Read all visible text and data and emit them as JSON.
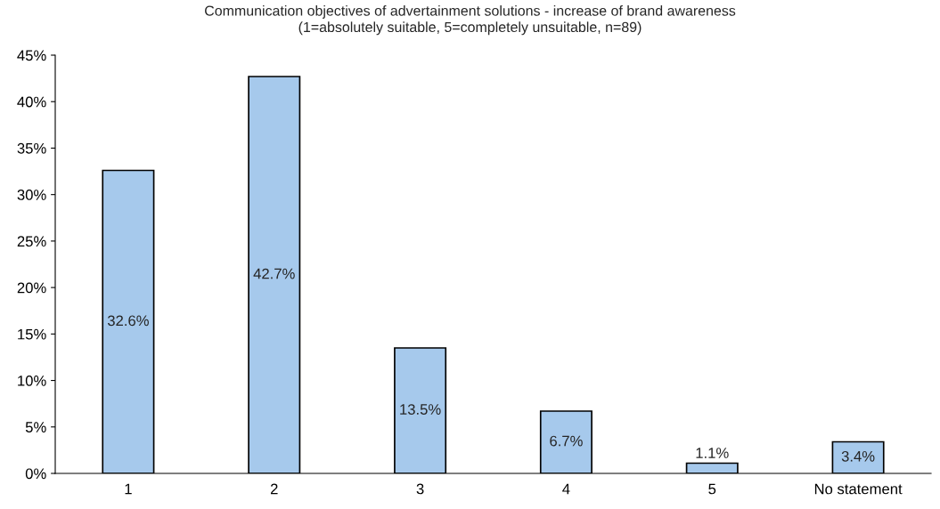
{
  "chart_data": {
    "type": "bar",
    "title": "Communication objectives of advertainment solutions - increase of brand awareness\n(1=absolutely suitable, 5=completely unsuitable, n=89)",
    "categories": [
      "1",
      "2",
      "3",
      "4",
      "5",
      "No statement"
    ],
    "values": [
      32.6,
      42.7,
      13.5,
      6.7,
      1.1,
      3.4
    ],
    "value_labels": [
      "32.6%",
      "42.7%",
      "13.5%",
      "6.7%",
      "1.1%",
      "3.4%"
    ],
    "color": "#a6c9ec",
    "ylim": [
      0,
      45
    ],
    "yticks": [
      {
        "value": 0,
        "label": "0%"
      },
      {
        "value": 5,
        "label": "5%"
      },
      {
        "value": 10,
        "label": "10%"
      },
      {
        "value": 15,
        "label": "15%"
      },
      {
        "value": 20,
        "label": "20%"
      },
      {
        "value": 25,
        "label": "25%"
      },
      {
        "value": 30,
        "label": "30%"
      },
      {
        "value": 35,
        "label": "35%"
      },
      {
        "value": 40,
        "label": "40%"
      },
      {
        "value": 45,
        "label": "45%"
      }
    ],
    "grid": false,
    "legend": false
  }
}
